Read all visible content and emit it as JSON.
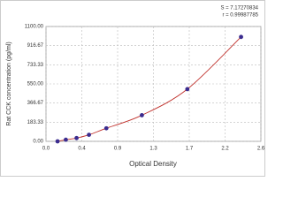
{
  "chart_data": {
    "type": "scatter",
    "x_label": "Optical Density",
    "y_label": "Rat CCK concentration (pg/ml)",
    "annotations": [
      "S = 7.17270834",
      "r = 0.99987785"
    ],
    "series": [
      {
        "color": "#3b2c8f",
        "curve_color": "#c0302b",
        "x": [
          0.14,
          0.24,
          0.37,
          0.52,
          0.73,
          1.16,
          1.71,
          2.36
        ],
        "values": [
          0,
          15.6,
          31.25,
          62.5,
          125,
          250,
          500,
          1000
        ]
      }
    ],
    "xlim": [
      0,
      2.6
    ],
    "xticks": [
      {
        "value": 0,
        "label": "0.0"
      },
      {
        "value": 0.4333,
        "label": "0.4"
      },
      {
        "value": 0.8667,
        "label": "0.9"
      },
      {
        "value": 1.3,
        "label": "1.3"
      },
      {
        "value": 1.7333,
        "label": "1.7"
      },
      {
        "value": 2.1667,
        "label": "2.2"
      },
      {
        "value": 2.6,
        "label": "2.6"
      }
    ],
    "ylim": [
      0,
      1100
    ],
    "yticks": [
      {
        "value": 0,
        "label": "0.00"
      },
      {
        "value": 183.33,
        "label": "183.33"
      },
      {
        "value": 366.67,
        "label": "366.67"
      },
      {
        "value": 550,
        "label": "550.00"
      },
      {
        "value": 733.33,
        "label": "733.33"
      },
      {
        "value": 916.67,
        "label": "916.67"
      },
      {
        "value": 1100,
        "label": "1100.00"
      }
    ],
    "grid": true
  }
}
